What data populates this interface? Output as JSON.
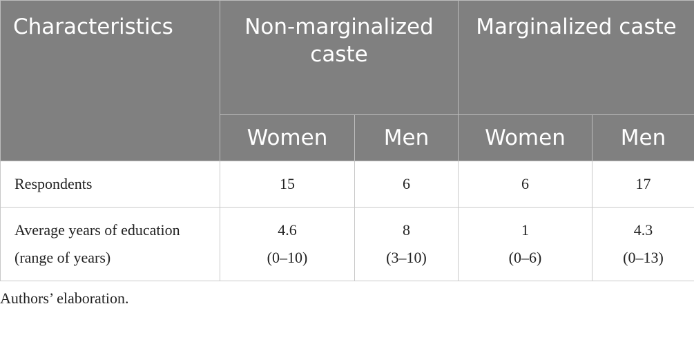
{
  "table": {
    "header": {
      "characteristics": "Characteristics",
      "groups": [
        {
          "label": "Non-marginalized caste",
          "sub": [
            "Women",
            "Men"
          ]
        },
        {
          "label": "Marginalized caste",
          "sub": [
            "Women",
            "Men"
          ]
        }
      ]
    },
    "rows": [
      {
        "label": "Respondents",
        "cells": [
          {
            "value": "15"
          },
          {
            "value": "6"
          },
          {
            "value": "6"
          },
          {
            "value": "17"
          }
        ]
      },
      {
        "label": "Average years of education (range of years)",
        "cells": [
          {
            "value": "4.6",
            "range": "(0–10)"
          },
          {
            "value": "8",
            "range": "(3–10)"
          },
          {
            "value": "1",
            "range": "(0–6)"
          },
          {
            "value": "4.3",
            "range": "(0–13)"
          }
        ]
      }
    ]
  },
  "note": "Authors’ elaboration."
}
